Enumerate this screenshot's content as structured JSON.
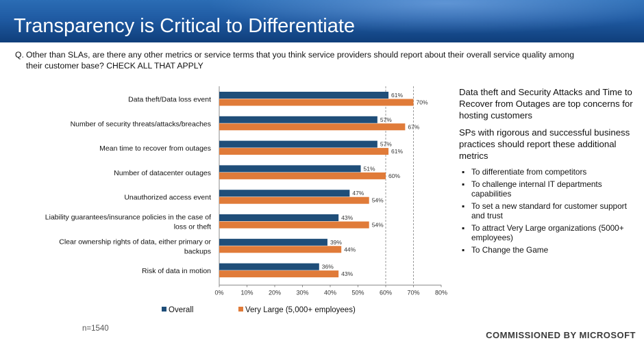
{
  "title": "Transparency is Critical to Differentiate",
  "question": {
    "prefix": "Q.",
    "text": "Other than SLAs, are there any other metrics or service terms that you think service providers should report about their overall service quality among their customer base? CHECK ALL THAT APPLY"
  },
  "chart_data": {
    "type": "bar",
    "orientation": "horizontal",
    "categories": [
      "Data theft/Data loss event",
      "Number of security threats/attacks/breaches",
      "Mean time to recover from outages",
      "Number of datacenter outages",
      "Unauthorized access event",
      "Liability guarantees/insurance policies in the case of loss or theft",
      "Clear ownership rights of data, either primary or backups",
      "Risk of data in motion"
    ],
    "series": [
      {
        "name": "Overall",
        "color": "#1f4e79",
        "values": [
          61,
          57,
          57,
          51,
          47,
          43,
          39,
          36
        ]
      },
      {
        "name": "Very Large (5,000+ employees)",
        "color": "#e07b39",
        "values": [
          70,
          67,
          61,
          60,
          54,
          54,
          44,
          43
        ]
      }
    ],
    "value_suffix": "%",
    "xlim": [
      0,
      80
    ],
    "xticks": [
      "0%",
      "10%",
      "20%",
      "30%",
      "40%",
      "50%",
      "60%",
      "70%",
      "80%"
    ],
    "gridlines": "dashed vertical at 60% and 70%",
    "legend_position": "bottom"
  },
  "sample_size": "n=1540",
  "sidebar": {
    "headline": "Data theft and Security Attacks and Time to Recover from Outages are top concerns for hosting customers",
    "subhead": "SPs with rigorous and successful business practices should report these additional metrics",
    "bullets": [
      "To differentiate from  competitors",
      "To challenge internal IT departments capabilities",
      "To set a new standard for customer support and trust",
      "To attract Very Large organizations (5000+ employees)",
      "To Change the Game"
    ]
  },
  "footer": "COMMISSIONED BY MICROSOFT"
}
